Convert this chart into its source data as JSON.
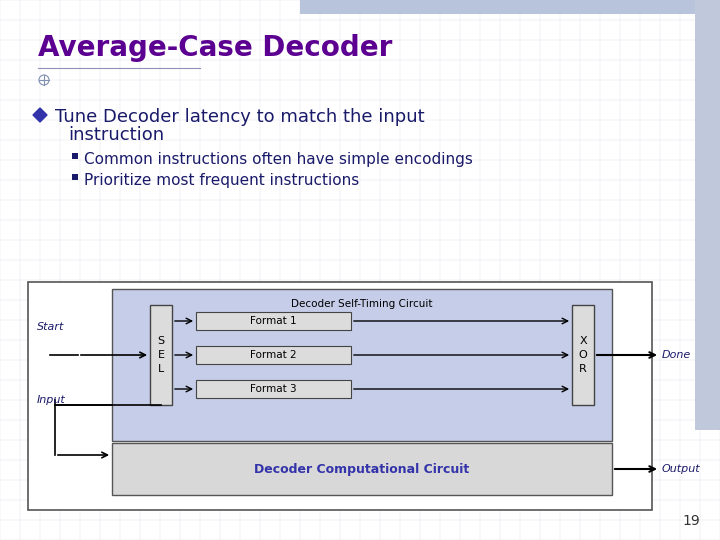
{
  "title": "Average-Case Decoder",
  "title_color": "#5B0090",
  "bg_color": "#FFFFFF",
  "text_color": "#1a1a6a",
  "bullet_color": "#3333AA",
  "sub_bullets": [
    "Common instructions often have simple encodings",
    "Prioritize most frequent instructions"
  ],
  "diagram": {
    "outer_box_facecolor": "#FFFFFF",
    "outer_box_edge": "#555555",
    "inner_box_facecolor": "#C5CDE8",
    "inner_box_edge": "#555555",
    "bottom_box_facecolor": "#D8D8D8",
    "bottom_box_edge": "#555555",
    "sel_box_facecolor": "#DCDCDC",
    "sel_box_edge": "#444444",
    "format_box_facecolor": "#DCDCDC",
    "format_box_edge": "#444444",
    "xor_box_facecolor": "#DCDCDC",
    "xor_box_edge": "#444444",
    "title_timing": "Decoder Self-Timing Circuit",
    "title_computational": "Decoder Computational Circuit",
    "formats": [
      "Format 1",
      "Format 2",
      "Format 3"
    ],
    "sel_label": "S\nE\nL",
    "xor_label": "X\nO\nR",
    "start_label": "Start",
    "input_label": "Input",
    "done_label": "Done",
    "output_label": "Output",
    "line_color": "#000000",
    "diagram_text_color": "#000000",
    "label_color": "#1a1a6a"
  },
  "page_number": "19",
  "grid_color": "#C8CCE0",
  "header_color": "#B8C4DC",
  "sidebar_color": "#C0C8DC"
}
